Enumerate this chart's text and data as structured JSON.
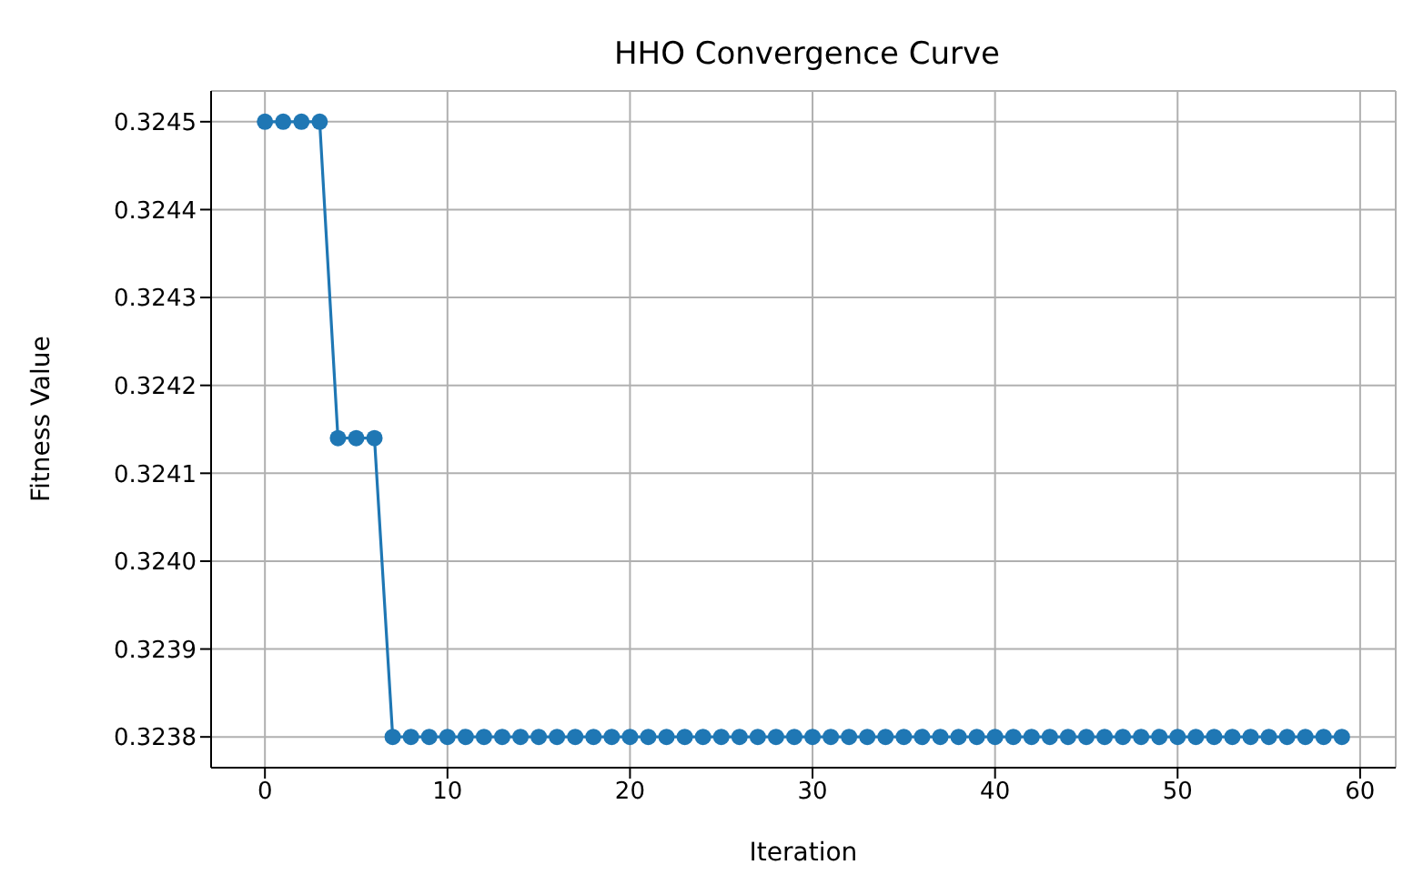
{
  "chart_data": {
    "type": "line",
    "title": "HHO Convergence Curve",
    "xlabel": "Iteration",
    "ylabel": "Fitness Value",
    "x": [
      0,
      1,
      2,
      3,
      4,
      5,
      6,
      7,
      8,
      9,
      10,
      11,
      12,
      13,
      14,
      15,
      16,
      17,
      18,
      19,
      20,
      21,
      22,
      23,
      24,
      25,
      26,
      27,
      28,
      29,
      30,
      31,
      32,
      33,
      34,
      35,
      36,
      37,
      38,
      39,
      40,
      41,
      42,
      43,
      44,
      45,
      46,
      47,
      48,
      49,
      50,
      51,
      52,
      53,
      54,
      55,
      56,
      57,
      58,
      59
    ],
    "series": [
      {
        "color": "#1f77b4",
        "values": [
          0.3245,
          0.3245,
          0.3245,
          0.3245,
          0.32414,
          0.32414,
          0.32414,
          0.3238,
          0.3238,
          0.3238,
          0.3238,
          0.3238,
          0.3238,
          0.3238,
          0.3238,
          0.3238,
          0.3238,
          0.3238,
          0.3238,
          0.3238,
          0.3238,
          0.3238,
          0.3238,
          0.3238,
          0.3238,
          0.3238,
          0.3238,
          0.3238,
          0.3238,
          0.3238,
          0.3238,
          0.3238,
          0.3238,
          0.3238,
          0.3238,
          0.3238,
          0.3238,
          0.3238,
          0.3238,
          0.3238,
          0.3238,
          0.3238,
          0.3238,
          0.3238,
          0.3238,
          0.3238,
          0.3238,
          0.3238,
          0.3238,
          0.3238,
          0.3238,
          0.3238,
          0.3238,
          0.3238,
          0.3238,
          0.3238,
          0.3238,
          0.3238,
          0.3238,
          0.3238
        ]
      }
    ],
    "xlim": [
      -2.95,
      61.95
    ],
    "xticks": [
      0,
      10,
      20,
      30,
      40,
      50,
      60
    ],
    "ylim": [
      0.323765,
      0.324535
    ],
    "yticks": [
      0.3238,
      0.3239,
      {
        "value": 0.324,
        "label": "0.3240"
      },
      0.3241,
      0.3242,
      0.3243,
      0.3244,
      0.3245
    ],
    "grid": true,
    "marker": "circle",
    "line_style": "solid"
  }
}
